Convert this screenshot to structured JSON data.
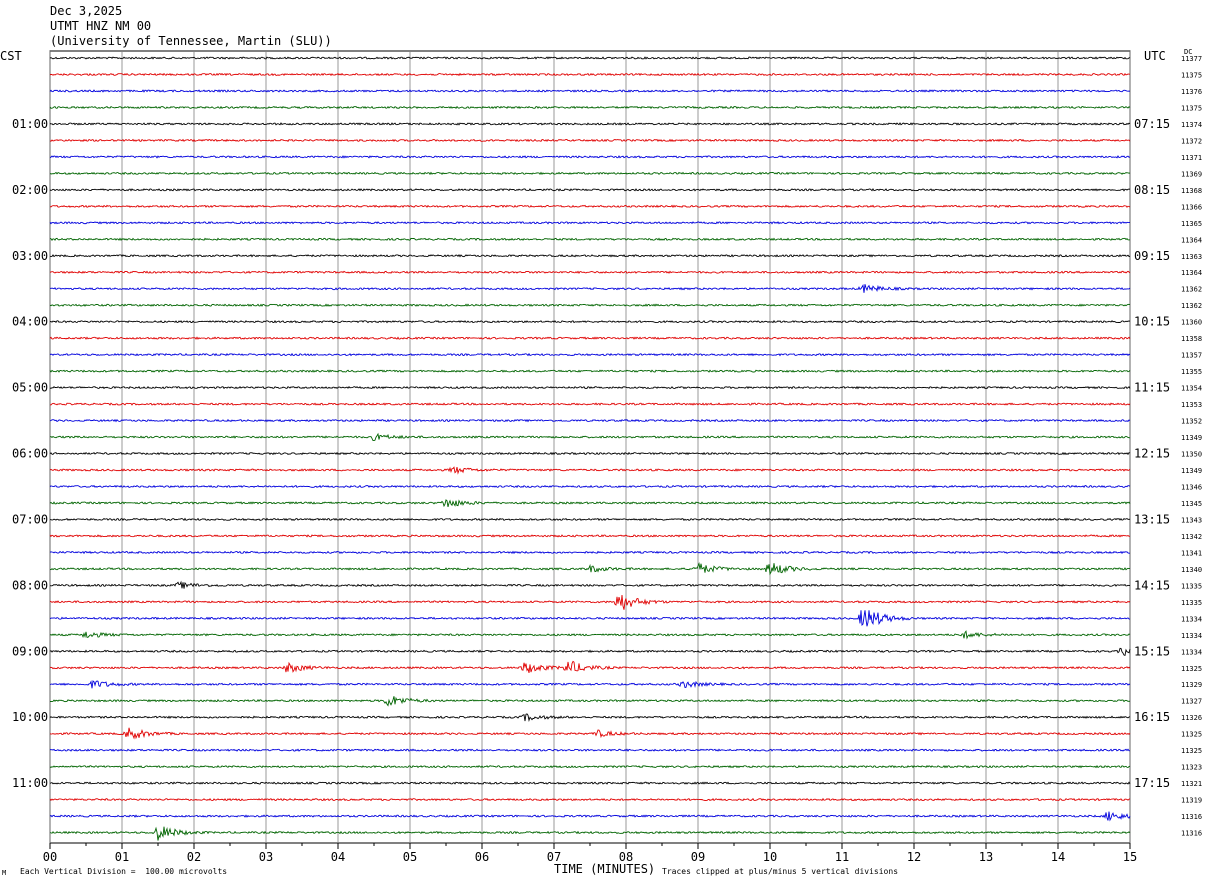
{
  "header": {
    "date": "Dec 3,2025",
    "channel": "UTMT HNZ NM 00",
    "site": "(University of Tennessee, Martin (SLU))"
  },
  "labels": {
    "left_tz": "CST",
    "right_tz": "UTC",
    "dc_header": "DC",
    "mark": "M"
  },
  "footer": {
    "scale_note": "Each Vertical Division =  100.00 microvolts",
    "clip_note": "Traces clipped at plus/minus 5 vertical divisions"
  },
  "colors": {
    "trace_cycle": [
      "#000000",
      "#e00000",
      "#0000dd",
      "#006400"
    ],
    "grid": "#808080",
    "frame": "#000000"
  },
  "chart_data": {
    "type": "line",
    "title": "UTMT HNZ NM 00",
    "xlabel": "TIME (MINUTES)",
    "ylabel": "",
    "x_ticks": [
      "00",
      "01",
      "02",
      "03",
      "04",
      "05",
      "06",
      "07",
      "08",
      "09",
      "10",
      "11",
      "12",
      "13",
      "14",
      "15"
    ],
    "xlim": [
      0,
      15
    ],
    "grid": true,
    "trace_count": 48,
    "left_time_labels": [
      {
        "row": 4,
        "label": "01:00"
      },
      {
        "row": 8,
        "label": "02:00"
      },
      {
        "row": 12,
        "label": "03:00"
      },
      {
        "row": 16,
        "label": "04:00"
      },
      {
        "row": 20,
        "label": "05:00"
      },
      {
        "row": 24,
        "label": "06:00"
      },
      {
        "row": 28,
        "label": "07:00"
      },
      {
        "row": 32,
        "label": "08:00"
      },
      {
        "row": 36,
        "label": "09:00"
      },
      {
        "row": 40,
        "label": "10:00"
      },
      {
        "row": 44,
        "label": "11:00"
      }
    ],
    "right_time_labels": [
      {
        "row": 4,
        "label": "07:15"
      },
      {
        "row": 8,
        "label": "08:15"
      },
      {
        "row": 12,
        "label": "09:15"
      },
      {
        "row": 16,
        "label": "10:15"
      },
      {
        "row": 20,
        "label": "11:15"
      },
      {
        "row": 24,
        "label": "12:15"
      },
      {
        "row": 28,
        "label": "13:15"
      },
      {
        "row": 32,
        "label": "14:15"
      },
      {
        "row": 36,
        "label": "15:15"
      },
      {
        "row": 40,
        "label": "16:15"
      },
      {
        "row": 44,
        "label": "17:15"
      }
    ],
    "dc_offsets": [
      "11377",
      "11375",
      "11376",
      "11375",
      "11374",
      "11372",
      "11371",
      "11369",
      "11368",
      "11366",
      "11365",
      "11364",
      "11363",
      "11364",
      "11362",
      "11362",
      "11360",
      "11358",
      "11357",
      "11355",
      "11354",
      "11353",
      "11352",
      "11349",
      "11350",
      "11349",
      "11346",
      "11345",
      "11343",
      "11342",
      "11341",
      "11340",
      "11335",
      "11335",
      "11334",
      "11334",
      "11334",
      "11325",
      "11329",
      "11327",
      "11326",
      "11325",
      "11325",
      "11323",
      "11321",
      "11319",
      "11316",
      "11316"
    ],
    "events": [
      {
        "row": 14,
        "minute": 11.3,
        "amplitude": 1.0
      },
      {
        "row": 23,
        "minute": 4.5,
        "amplitude": 0.8
      },
      {
        "row": 25,
        "minute": 5.6,
        "amplitude": 0.8
      },
      {
        "row": 27,
        "minute": 5.5,
        "amplitude": 1.2
      },
      {
        "row": 31,
        "minute": 7.5,
        "amplitude": 0.8
      },
      {
        "row": 31,
        "minute": 9.0,
        "amplitude": 1.4
      },
      {
        "row": 31,
        "minute": 10.0,
        "amplitude": 1.8
      },
      {
        "row": 32,
        "minute": 1.8,
        "amplitude": 0.8
      },
      {
        "row": 33,
        "minute": 7.9,
        "amplitude": 2.5
      },
      {
        "row": 34,
        "minute": 11.3,
        "amplitude": 3.5
      },
      {
        "row": 35,
        "minute": 0.5,
        "amplitude": 0.8
      },
      {
        "row": 35,
        "minute": 12.7,
        "amplitude": 0.8
      },
      {
        "row": 36,
        "minute": 14.9,
        "amplitude": 1.0
      },
      {
        "row": 37,
        "minute": 3.3,
        "amplitude": 1.2
      },
      {
        "row": 37,
        "minute": 6.6,
        "amplitude": 1.5
      },
      {
        "row": 37,
        "minute": 7.2,
        "amplitude": 1.8
      },
      {
        "row": 38,
        "minute": 0.6,
        "amplitude": 1.0
      },
      {
        "row": 38,
        "minute": 8.8,
        "amplitude": 0.8
      },
      {
        "row": 39,
        "minute": 4.7,
        "amplitude": 1.5
      },
      {
        "row": 40,
        "minute": 6.6,
        "amplitude": 0.8
      },
      {
        "row": 41,
        "minute": 1.1,
        "amplitude": 1.6
      },
      {
        "row": 41,
        "minute": 7.6,
        "amplitude": 0.8
      },
      {
        "row": 46,
        "minute": 14.7,
        "amplitude": 1.2
      },
      {
        "row": 47,
        "minute": 1.5,
        "amplitude": 2.0
      }
    ]
  }
}
